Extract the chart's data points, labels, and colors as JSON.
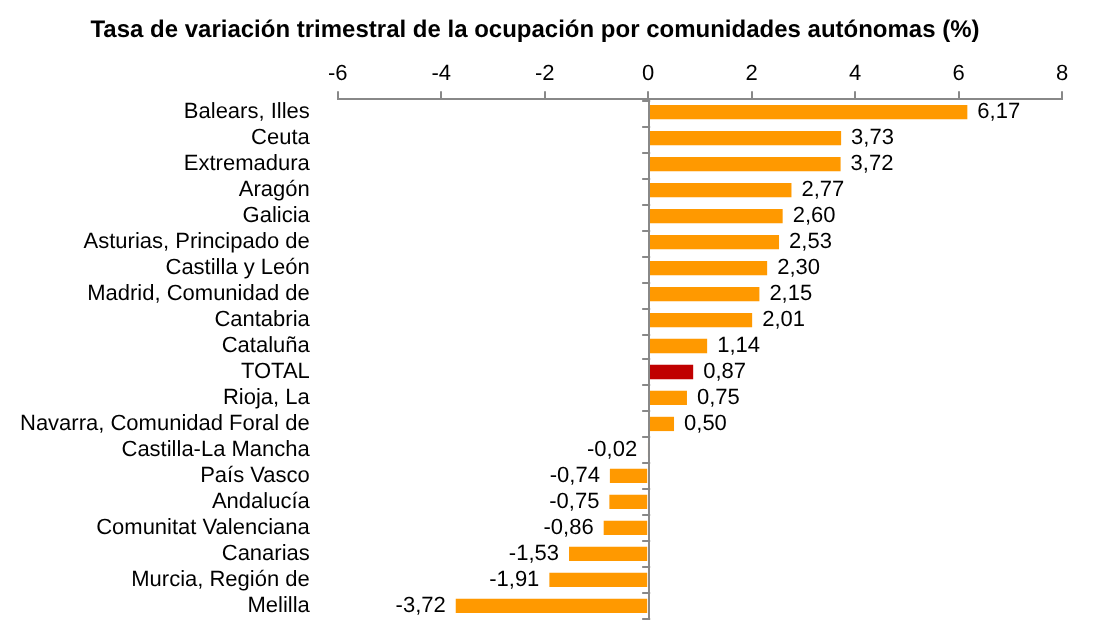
{
  "chart_data": {
    "type": "bar",
    "orientation": "horizontal",
    "title": "Tasa de variación trimestral de la ocupación por comunidades autónomas (%)",
    "categories": [
      "Balears, Illes",
      "Ceuta",
      "Extremadura",
      "Aragón",
      "Galicia",
      "Asturias, Principado de",
      "Castilla y León",
      "Madrid, Comunidad de",
      "Cantabria",
      "Cataluña",
      "TOTAL",
      "Rioja, La",
      "Navarra, Comunidad Foral de",
      "Castilla-La Mancha",
      "País Vasco",
      "Andalucía",
      "Comunitat Valenciana",
      "Canarias",
      "Murcia, Región de",
      "Melilla"
    ],
    "values": [
      6.17,
      3.73,
      3.72,
      2.77,
      2.6,
      2.53,
      2.3,
      2.15,
      2.01,
      1.14,
      0.87,
      0.75,
      0.5,
      -0.02,
      -0.74,
      -0.75,
      -0.86,
      -1.53,
      -1.91,
      -3.72
    ],
    "value_labels": [
      "6,17",
      "3,73",
      "3,72",
      "2,77",
      "2,60",
      "2,53",
      "2,30",
      "2,15",
      "2,01",
      "1,14",
      "0,87",
      "0,75",
      "0,50",
      "-0,02",
      "-0,74",
      "-0,75",
      "-0,86",
      "-1,53",
      "-1,91",
      "-3,72"
    ],
    "colors": [
      "#ff9900",
      "#ff9900",
      "#ff9900",
      "#ff9900",
      "#ff9900",
      "#ff9900",
      "#ff9900",
      "#ff9900",
      "#ff9900",
      "#ff9900",
      "#c00000",
      "#ff9900",
      "#ff9900",
      "#ff9900",
      "#ff9900",
      "#ff9900",
      "#ff9900",
      "#ff9900",
      "#ff9900",
      "#ff9900"
    ],
    "xlim": [
      -6,
      8
    ],
    "xticks": [
      -6,
      -4,
      -2,
      0,
      2,
      4,
      6,
      8
    ]
  }
}
